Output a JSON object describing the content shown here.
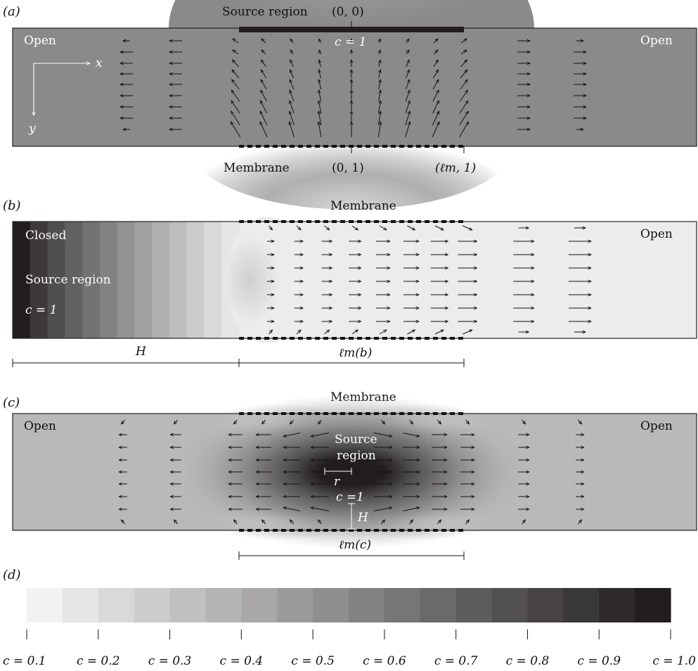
{
  "panel_a": {
    "letter": "(a)",
    "source_label": "Source region",
    "origin_label": "(0, 0)",
    "c_label": "c = 1",
    "open_left": "Open",
    "open_right": "Open",
    "x_axis": "x",
    "y_axis": "y",
    "membrane_label": "Membrane",
    "point_01": "(0, 1)",
    "point_lm1": "(ℓm, 1)"
  },
  "panel_b": {
    "letter": "(b)",
    "membrane_label": "Membrane",
    "closed_label": "Closed",
    "source_label": "Source region",
    "c_label": "c = 1",
    "open_right": "Open",
    "H_label": "H",
    "lm_label": "ℓm(b)"
  },
  "panel_c": {
    "letter": "(c)",
    "membrane_label": "Membrane",
    "open_left": "Open",
    "open_right": "Open",
    "source_line1": "Source",
    "source_line2": "region",
    "r_label": "r",
    "c_label": "c =1",
    "H_label": "H",
    "lm_label": "ℓm(c)"
  },
  "colorbar": {
    "letter": "(d)",
    "levels": [
      0.1,
      0.15,
      0.2,
      0.25,
      0.3,
      0.35,
      0.4,
      0.45,
      0.5,
      0.55,
      0.6,
      0.65,
      0.7,
      0.75,
      0.8,
      0.85,
      0.9,
      0.95
    ],
    "tick_labels": [
      "c = 0.1",
      "c = 0.2",
      "c = 0.3",
      "c = 0.4",
      "c = 0.5",
      "c = 0.6",
      "c = 0.7",
      "c = 0.8",
      "c = 0.9",
      "c = 1.0"
    ],
    "color_low": "#f2f2f2",
    "color_high": "#221e1f"
  }
}
